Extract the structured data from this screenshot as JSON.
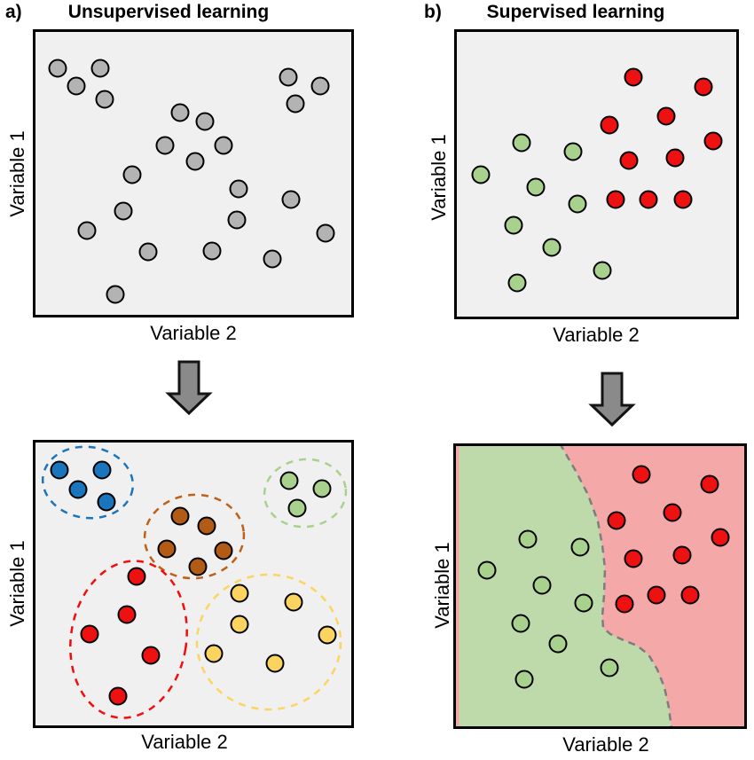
{
  "panel_a": {
    "label": "a)",
    "title": "Unsupervised learning",
    "top_plot": {
      "xlabel": "Variable 2",
      "ylabel": "Variable 1",
      "bg": "#f0f0f0",
      "dot_color": "#b3b3b3",
      "points": [
        [
          28,
          44
        ],
        [
          76,
          44
        ],
        [
          49,
          64
        ],
        [
          81,
          79
        ],
        [
          288,
          54
        ],
        [
          324,
          64
        ],
        [
          296,
          84
        ],
        [
          166,
          94
        ],
        [
          194,
          104
        ],
        [
          149,
          131
        ],
        [
          215,
          131
        ],
        [
          183,
          149
        ],
        [
          112,
          164
        ],
        [
          232,
          180
        ],
        [
          291,
          192
        ],
        [
          102,
          205
        ],
        [
          230,
          215
        ],
        [
          61,
          227
        ],
        [
          330,
          230
        ],
        [
          130,
          251
        ],
        [
          202,
          250
        ],
        [
          270,
          259
        ],
        [
          93,
          299
        ]
      ]
    },
    "bottom_plot": {
      "xlabel": "Variable 2",
      "ylabel": "Variable 1",
      "bg": "#f0f0f0",
      "clusters": [
        {
          "name": "blue-cluster",
          "dot_color": "#1b75bc",
          "ellipse_color": "#1b75bc",
          "ellipse": [
            62,
            48,
            51,
            40,
            8
          ],
          "points": [
            [
              30,
              34
            ],
            [
              78,
              34
            ],
            [
              51,
              56
            ],
            [
              83,
              70
            ]
          ]
        },
        {
          "name": "brown-cluster",
          "dot_color": "#b25b16",
          "ellipse_color": "#c05f17",
          "ellipse": [
            182,
            109,
            56,
            47,
            -5
          ],
          "points": [
            [
              166,
              86
            ],
            [
              196,
              97
            ],
            [
              151,
              123
            ],
            [
              215,
              125
            ],
            [
              186,
              143
            ]
          ]
        },
        {
          "name": "green-cluster",
          "dot_color": "#a9d18e",
          "ellipse_color": "#a9d18e",
          "ellipse": [
            307,
            60,
            46,
            38,
            -6
          ],
          "points": [
            [
              289,
              46
            ],
            [
              326,
              55
            ],
            [
              298,
              77
            ]
          ]
        },
        {
          "name": "red-cluster",
          "dot_color": "#ee1111",
          "ellipse_color": "#f20d0d",
          "ellipse": [
            108,
            225,
            65,
            89,
            9
          ],
          "points": [
            [
              117,
              154
            ],
            [
              106,
              197
            ],
            [
              64,
              219
            ],
            [
              133,
              243
            ],
            [
              96,
              289
            ]
          ]
        },
        {
          "name": "yellow-cluster",
          "dot_color": "#fad45f",
          "ellipse_color": "#fbd560",
          "ellipse": [
            266,
            228,
            81,
            76,
            0
          ],
          "points": [
            [
              233,
              173
            ],
            [
              294,
              183
            ],
            [
              233,
              208
            ],
            [
              332,
              220
            ],
            [
              204,
              241
            ],
            [
              273,
              252
            ]
          ]
        }
      ]
    }
  },
  "panel_b": {
    "label": "b)",
    "title": "Supervised learning",
    "top_plot": {
      "xlabel": "Variable 2",
      "ylabel": "Variable 1",
      "bg": "#f0f0f0",
      "series": [
        {
          "name": "green-class",
          "color": "#a9d18e",
          "points": [
            [
              76,
              128
            ],
            [
              134,
              138
            ],
            [
              30,
              164
            ],
            [
              92,
              178
            ],
            [
              139,
              197
            ],
            [
              67,
              221
            ],
            [
              110,
              246
            ],
            [
              167,
              272
            ],
            [
              71,
              286
            ]
          ]
        },
        {
          "name": "red-class",
          "color": "#ee1111",
          "points": [
            [
              202,
              54
            ],
            [
              281,
              65
            ],
            [
              239,
              98
            ],
            [
              175,
              108
            ],
            [
              292,
              126
            ],
            [
              197,
              148
            ],
            [
              249,
              145
            ],
            [
              182,
              192
            ],
            [
              219,
              192
            ],
            [
              258,
              192
            ]
          ]
        }
      ]
    },
    "bottom_plot": {
      "xlabel": "Variable 2",
      "ylabel": "Variable 1",
      "green_region_color": "#bed9aa",
      "red_region_color": "#f5a8a8",
      "boundary_color": "#7d7d7d",
      "boundary_points": [
        [
          120,
          0
        ],
        [
          138,
          31
        ],
        [
          152,
          58
        ],
        [
          163,
          88
        ],
        [
          168,
          115
        ],
        [
          171,
          141
        ],
        [
          170,
          171
        ],
        [
          168,
          195
        ],
        [
          169,
          208
        ],
        [
          177,
          215
        ],
        [
          190,
          221
        ],
        [
          207,
          228
        ],
        [
          220,
          238
        ],
        [
          230,
          255
        ],
        [
          238,
          275
        ],
        [
          243,
          298
        ],
        [
          246,
          322
        ]
      ],
      "series": [
        {
          "name": "green-class",
          "color": "#a9d18e",
          "points": [
            [
              84,
              108
            ],
            [
              143,
              117
            ],
            [
              38,
              143
            ],
            [
              100,
              160
            ],
            [
              147,
              180
            ],
            [
              76,
              203
            ],
            [
              118,
              226
            ],
            [
              176,
              253
            ],
            [
              80,
              266
            ]
          ]
        },
        {
          "name": "red-class",
          "color": "#ee1111",
          "points": [
            [
              212,
              35
            ],
            [
              289,
              46
            ],
            [
              247,
              78
            ],
            [
              184,
              87
            ],
            [
              301,
              106
            ],
            [
              203,
              130
            ],
            [
              258,
              126
            ],
            [
              193,
              181
            ],
            [
              229,
              171
            ],
            [
              267,
              171
            ]
          ]
        }
      ]
    }
  },
  "arrow": {
    "fill": "#8a8a8a",
    "stroke": "#141414"
  },
  "style": {
    "border_color": "#000000",
    "dot_radius": 9.5,
    "dot_stroke": "#000000"
  }
}
